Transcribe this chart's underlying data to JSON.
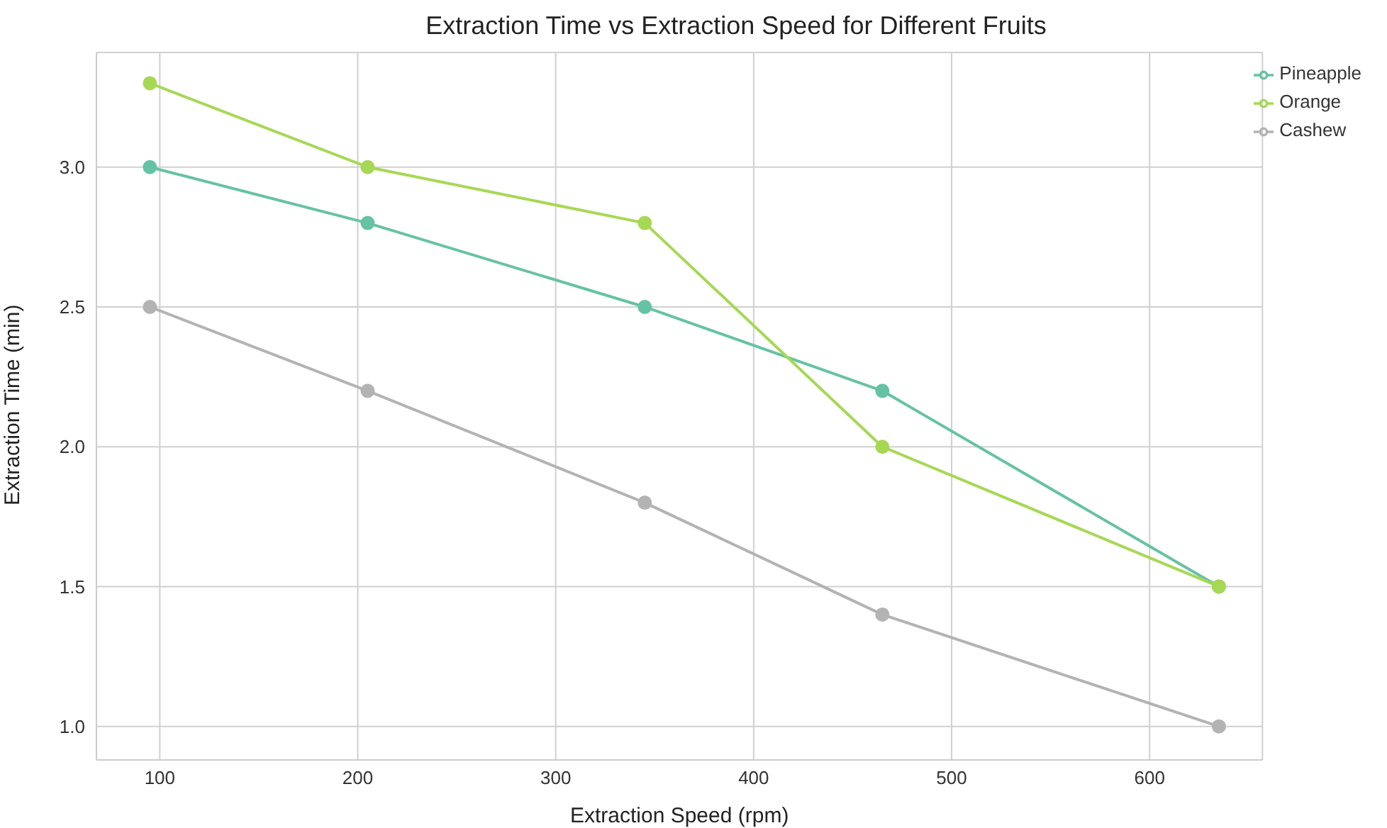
{
  "chart_data": {
    "type": "line",
    "title": "Extraction Time vs Extraction Speed for Different Fruits",
    "xlabel": "Extraction Speed (rpm)",
    "ylabel": "Extraction Time (min)",
    "x": [
      95,
      205,
      345,
      465,
      635
    ],
    "series": [
      {
        "name": "Pineapple",
        "color": "#66c2a5",
        "values": [
          3.0,
          2.8,
          2.5,
          2.2,
          1.5
        ]
      },
      {
        "name": "Orange",
        "color": "#a6d854",
        "values": [
          3.3,
          3.0,
          2.8,
          2.0,
          1.5
        ]
      },
      {
        "name": "Cashew",
        "color": "#b3b3b3",
        "values": [
          2.5,
          2.2,
          1.8,
          1.4,
          1.0
        ]
      }
    ],
    "xlim": [
      68,
      657
    ],
    "xticks": [
      100,
      200,
      300,
      400,
      500,
      600
    ],
    "ylim": [
      0.88,
      3.41
    ],
    "yticks": [
      {
        "value": 1,
        "label": "1.0"
      },
      1.5,
      {
        "value": 2,
        "label": "2.0"
      },
      2.5,
      {
        "value": 3,
        "label": "3.0"
      }
    ],
    "grid": true,
    "legend": "top right",
    "marker": "circle",
    "line_style": "solid"
  }
}
